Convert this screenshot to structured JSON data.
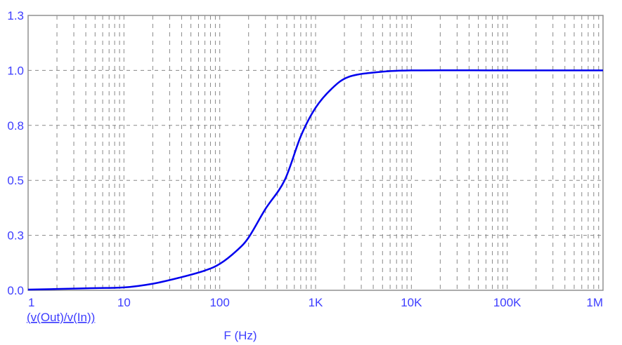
{
  "chart_data": {
    "type": "line",
    "title": "",
    "xlabel": "F (Hz)",
    "ylabel": "",
    "xscale": "log",
    "xlim": [
      1,
      1000000
    ],
    "ylim": [
      0,
      1.25
    ],
    "grid": true,
    "x_ticks": [
      {
        "value": 1,
        "label": "1"
      },
      {
        "value": 10,
        "label": "10"
      },
      {
        "value": 100,
        "label": "100"
      },
      {
        "value": 1000,
        "label": "1K"
      },
      {
        "value": 10000,
        "label": "10K"
      },
      {
        "value": 100000,
        "label": "100K"
      },
      {
        "value": 1000000,
        "label": "1M"
      }
    ],
    "y_ticks": [
      {
        "value": 0,
        "label": "0.0"
      },
      {
        "value": 0.25,
        "label": "0.3"
      },
      {
        "value": 0.5,
        "label": "0.5"
      },
      {
        "value": 0.75,
        "label": "0.8"
      },
      {
        "value": 1.0,
        "label": "1.0"
      },
      {
        "value": 1.25,
        "label": "1.3"
      }
    ],
    "series": [
      {
        "name": "(v(Out)/v(In))",
        "color": "#0000ee",
        "x": [
          1,
          2,
          5,
          10,
          20,
          40,
          70,
          100,
          150,
          200,
          300,
          475,
          700,
          1000,
          1500,
          2200,
          4000,
          10000,
          100000,
          1000000
        ],
        "y": [
          0.003,
          0.006,
          0.01,
          0.013,
          0.03,
          0.06,
          0.09,
          0.12,
          0.18,
          0.24,
          0.37,
          0.5,
          0.7,
          0.83,
          0.92,
          0.97,
          0.99,
          1.0,
          1.0,
          1.0
        ]
      }
    ],
    "colors": {
      "axis_text": "#3d3dff",
      "grid": "#888888",
      "frame": "#909090"
    }
  }
}
